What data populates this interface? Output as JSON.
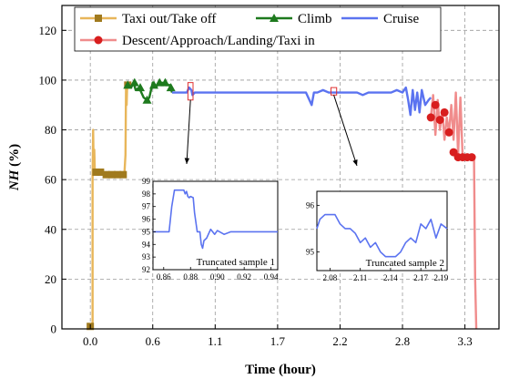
{
  "chart_data": {
    "type": "line",
    "xlabel": "Time (hour)",
    "ylabel": "NH (%)",
    "xlim": [
      -0.25,
      3.6
    ],
    "ylim": [
      0,
      130
    ],
    "xticks": [
      "0.0",
      "0.6",
      "1.1",
      "1.7",
      "2.2",
      "2.8",
      "3.3"
    ],
    "xtick_values": [
      0.0,
      0.55,
      1.1,
      1.65,
      2.2,
      2.75,
      3.3
    ],
    "yticks": [
      0,
      20,
      40,
      60,
      80,
      100,
      120
    ],
    "grid": true,
    "legend_position": "top-left",
    "series": [
      {
        "name": "Taxi out/Take off",
        "color": "#E8B65A",
        "marker": "square",
        "marker_color": "#A07A1E",
        "x": [
          0.0,
          0.01,
          0.02,
          0.02,
          0.025,
          0.03,
          0.035,
          0.04,
          0.05,
          0.07,
          0.1,
          0.15,
          0.2,
          0.25,
          0.3,
          0.31,
          0.315,
          0.32,
          0.325,
          0.33
        ],
        "y": [
          1,
          1,
          1,
          60,
          80,
          64,
          72,
          63,
          63,
          63,
          63,
          62,
          62,
          62,
          62,
          70,
          99,
          90,
          98,
          98
        ],
        "markers_x": [
          0.0,
          0.05,
          0.09,
          0.14,
          0.19,
          0.24,
          0.29,
          0.33
        ],
        "markers_y": [
          1,
          63,
          63,
          62,
          62,
          62,
          62,
          98
        ]
      },
      {
        "name": "Climb",
        "color": "#1E7A1E",
        "marker": "triangle",
        "marker_color": "#1E7A1E",
        "x": [
          0.33,
          0.36,
          0.38,
          0.4,
          0.43,
          0.45,
          0.47,
          0.5,
          0.52,
          0.55,
          0.58,
          0.6,
          0.63,
          0.66,
          0.7,
          0.72
        ],
        "y": [
          98,
          97,
          99,
          96,
          97,
          95,
          93,
          92,
          93,
          99,
          97,
          99,
          99,
          98,
          98,
          95
        ],
        "markers_x": [
          0.33,
          0.39,
          0.44,
          0.5,
          0.56,
          0.61,
          0.66,
          0.71
        ],
        "markers_y": [
          98,
          99,
          97,
          92,
          98,
          99,
          99,
          97
        ]
      },
      {
        "name": "Cruise",
        "color": "#5B73F0",
        "marker": "none",
        "x": [
          0.72,
          0.75,
          0.8,
          0.85,
          0.87,
          0.89,
          0.9,
          0.92,
          0.95,
          1.0,
          1.1,
          1.2,
          1.3,
          1.4,
          1.5,
          1.6,
          1.7,
          1.8,
          1.9,
          1.95,
          1.97,
          2.0,
          2.05,
          2.1,
          2.15,
          2.2,
          2.25,
          2.3,
          2.35,
          2.4,
          2.45,
          2.5,
          2.55,
          2.6,
          2.65,
          2.7,
          2.75,
          2.78,
          2.8,
          2.82,
          2.84,
          2.86,
          2.88,
          2.9,
          2.92,
          2.95,
          2.98,
          3.0
        ],
        "y": [
          95,
          95,
          95,
          95,
          97,
          96,
          94,
          95,
          95,
          95,
          95,
          95,
          95,
          95,
          95,
          95,
          95,
          95,
          95,
          90,
          95,
          95,
          96,
          95,
          95,
          95,
          95,
          95,
          95,
          94,
          95,
          95,
          95,
          95,
          95,
          96,
          95,
          97,
          92,
          86,
          96,
          88,
          95,
          87,
          96,
          90,
          92,
          93
        ],
        "markers_x": [],
        "markers_y": []
      },
      {
        "name": "Descent/Approach/Landing/Taxi in",
        "color": "#F08C8C",
        "marker": "circle",
        "marker_color": "#D81E1E",
        "x": [
          3.0,
          3.02,
          3.04,
          3.06,
          3.08,
          3.1,
          3.12,
          3.14,
          3.16,
          3.18,
          3.2,
          3.22,
          3.24,
          3.26,
          3.28,
          3.3,
          3.32,
          3.34,
          3.36,
          3.38,
          3.39,
          3.4
        ],
        "y": [
          85,
          94,
          78,
          92,
          80,
          88,
          76,
          85,
          79,
          90,
          76,
          95,
          70,
          93,
          69,
          69,
          69,
          69,
          69,
          69,
          20,
          0
        ],
        "markers_x": [
          3.0,
          3.04,
          3.08,
          3.12,
          3.16,
          3.2,
          3.24,
          3.28,
          3.32,
          3.36
        ],
        "markers_y": [
          85,
          90,
          84,
          87,
          79,
          71,
          69,
          69,
          69,
          69
        ]
      }
    ],
    "insets": [
      {
        "label": "Truncated sample 1",
        "xticks": [
          "0.86",
          "0.88",
          "0.90",
          "0.92",
          "0.94"
        ],
        "xtick_values": [
          0.86,
          0.88,
          0.9,
          0.92,
          0.94
        ],
        "yticks": [
          "92",
          "93",
          "94",
          "95",
          "96",
          "97",
          "98",
          "99"
        ],
        "ytick_values": [
          92,
          93,
          94,
          95,
          96,
          97,
          98,
          99
        ],
        "xlim": [
          0.852,
          0.945
        ],
        "ylim": [
          92,
          99
        ],
        "x": [
          0.852,
          0.856,
          0.86,
          0.864,
          0.866,
          0.868,
          0.875,
          0.876,
          0.877,
          0.878,
          0.879,
          0.88,
          0.882,
          0.883,
          0.885,
          0.887,
          0.888,
          0.889,
          0.89,
          0.892,
          0.895,
          0.898,
          0.9,
          0.905,
          0.91,
          0.915,
          0.92,
          0.925,
          0.93,
          0.935,
          0.94,
          0.945
        ],
        "y": [
          95,
          95,
          95,
          95,
          97,
          98.3,
          98.3,
          98,
          98.2,
          97.8,
          97.7,
          97.8,
          97.7,
          96.5,
          95,
          95,
          94,
          93.7,
          94.3,
          94.5,
          95.2,
          94.8,
          95.1,
          94.8,
          95,
          95,
          95,
          95,
          95,
          95,
          95,
          95
        ]
      },
      {
        "label": "Truncated sample 2",
        "xticks": [
          "2.08",
          "2.11",
          "2.14",
          "2.17",
          "2.19"
        ],
        "xtick_values": [
          2.08,
          2.11,
          2.14,
          2.17,
          2.19
        ],
        "yticks": [
          "95",
          "96"
        ],
        "ytick_values": [
          95,
          96
        ],
        "xlim": [
          2.067,
          2.196
        ],
        "ylim": [
          94.6,
          96.3
        ],
        "x": [
          2.067,
          2.07,
          2.075,
          2.08,
          2.085,
          2.09,
          2.095,
          2.1,
          2.105,
          2.11,
          2.115,
          2.12,
          2.125,
          2.13,
          2.135,
          2.14,
          2.145,
          2.15,
          2.155,
          2.16,
          2.165,
          2.17,
          2.175,
          2.18,
          2.185,
          2.19,
          2.196
        ],
        "y": [
          95.5,
          95.7,
          95.8,
          95.8,
          95.8,
          95.6,
          95.5,
          95.5,
          95.4,
          95.2,
          95.3,
          95.1,
          95.2,
          95.0,
          94.9,
          94.9,
          94.9,
          95.0,
          95.2,
          95.3,
          95.2,
          95.6,
          95.5,
          95.7,
          95.3,
          95.6,
          95.5
        ]
      }
    ]
  }
}
